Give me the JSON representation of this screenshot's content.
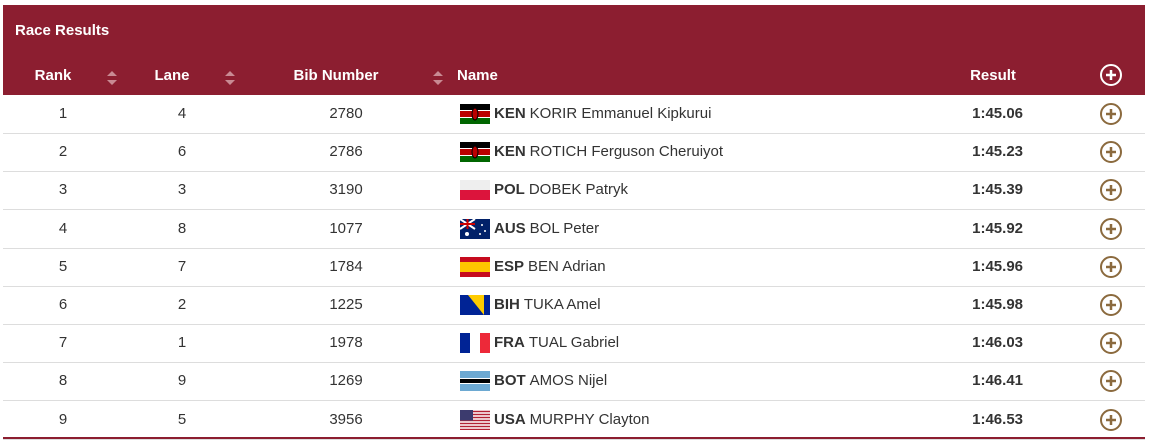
{
  "header": {
    "title": "Race Results",
    "columns": [
      "Rank",
      "Lane",
      "Bib Number",
      "Name",
      "Result"
    ]
  },
  "table": {
    "rows": [
      {
        "rank": 1,
        "lane": 4,
        "bib": 2780,
        "country": "KEN",
        "name": "KORIR Emmanuel Kipkurui",
        "result": "1:45.06"
      },
      {
        "rank": 2,
        "lane": 6,
        "bib": 2786,
        "country": "KEN",
        "name": "ROTICH Ferguson Cheruiyot",
        "result": "1:45.23"
      },
      {
        "rank": 3,
        "lane": 3,
        "bib": 3190,
        "country": "POL",
        "name": "DOBEK Patryk",
        "result": "1:45.39"
      },
      {
        "rank": 4,
        "lane": 8,
        "bib": 1077,
        "country": "AUS",
        "name": "BOL Peter",
        "result": "1:45.92"
      },
      {
        "rank": 5,
        "lane": 7,
        "bib": 1784,
        "country": "ESP",
        "name": "BEN Adrian",
        "result": "1:45.96"
      },
      {
        "rank": 6,
        "lane": 2,
        "bib": 1225,
        "country": "BIH",
        "name": "TUKA Amel",
        "result": "1:45.98"
      },
      {
        "rank": 7,
        "lane": 1,
        "bib": 1978,
        "country": "FRA",
        "name": "TUAL Gabriel",
        "result": "1:46.03"
      },
      {
        "rank": 8,
        "lane": 9,
        "bib": 1269,
        "country": "BOT",
        "name": "AMOS Nijel",
        "result": "1:46.41"
      },
      {
        "rank": 9,
        "lane": 5,
        "bib": 3956,
        "country": "USA",
        "name": "MURPHY Clayton",
        "result": "1:46.53"
      }
    ]
  }
}
